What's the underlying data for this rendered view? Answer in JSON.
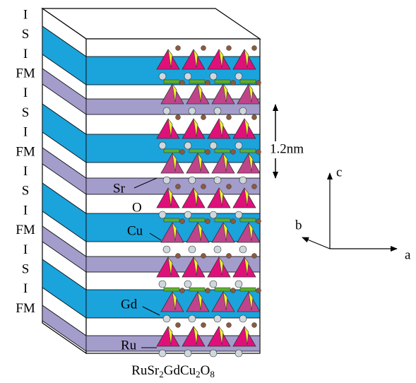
{
  "layer_labels": [
    "I",
    "S",
    "I",
    "FM",
    "I",
    "S",
    "I",
    "FM",
    "I",
    "S",
    "I",
    "FM",
    "I",
    "S",
    "I",
    "FM"
  ],
  "atom_labels": [
    "Sr",
    "O",
    "Cu",
    "Gd",
    "Ru"
  ],
  "scale_label": "1.2nm",
  "axes": {
    "a": "a",
    "b": "b",
    "c": "c"
  },
  "formula": [
    "RuSr",
    "2",
    "GdCu",
    "2",
    "O",
    "8"
  ]
}
